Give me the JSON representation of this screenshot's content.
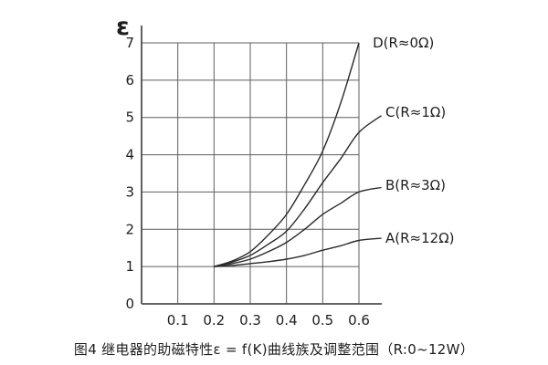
{
  "chart_data": {
    "type": "line",
    "title": "图4 继电器的助磁特性ε = f(K)曲线族及调整范围（R:0~12W）",
    "xlabel": "",
    "ylabel": "ε",
    "xlim": [
      0,
      0.6
    ],
    "ylim": [
      0,
      7
    ],
    "grid": true,
    "legend_position": "right-of-curves",
    "x_ticks": [
      "0.1",
      "0.2",
      "0.3",
      "0.4",
      "0.5",
      "0.6"
    ],
    "y_ticks": [
      "0",
      "1",
      "2",
      "3",
      "4",
      "5",
      "6",
      "7"
    ],
    "x": [
      0.2,
      0.25,
      0.3,
      0.35,
      0.4,
      0.45,
      0.5,
      0.55,
      0.6
    ],
    "series": [
      {
        "name": "D",
        "label": "D(R≈0Ω)",
        "values": [
          1.0,
          1.15,
          1.4,
          1.85,
          2.4,
          3.2,
          4.1,
          5.4,
          7.0
        ],
        "label_pos": [
          0.638,
          7.0
        ]
      },
      {
        "name": "C",
        "label": "C(R≈1Ω)",
        "values": [
          1.0,
          1.12,
          1.3,
          1.6,
          1.95,
          2.55,
          3.25,
          3.9,
          4.6
        ],
        "ext": [
          0.662,
          5.05
        ],
        "label_pos": [
          0.673,
          5.14
        ]
      },
      {
        "name": "B",
        "label": "B(R≈3Ω)",
        "values": [
          1.0,
          1.08,
          1.2,
          1.4,
          1.65,
          2.0,
          2.4,
          2.7,
          3.0
        ],
        "ext": [
          0.662,
          3.12
        ],
        "label_pos": [
          0.673,
          3.18
        ]
      },
      {
        "name": "A",
        "label": "A(R≈12Ω)",
        "values": [
          1.0,
          1.03,
          1.08,
          1.13,
          1.2,
          1.3,
          1.44,
          1.56,
          1.7
        ],
        "ext": [
          0.662,
          1.76
        ],
        "label_pos": [
          0.673,
          1.76
        ]
      }
    ],
    "colors": {
      "line": "#2a2a2a",
      "grid": "#5e5e5e",
      "axis": "#4f4f4f",
      "text": "#1e1e1e",
      "background": "#ffffff"
    }
  }
}
